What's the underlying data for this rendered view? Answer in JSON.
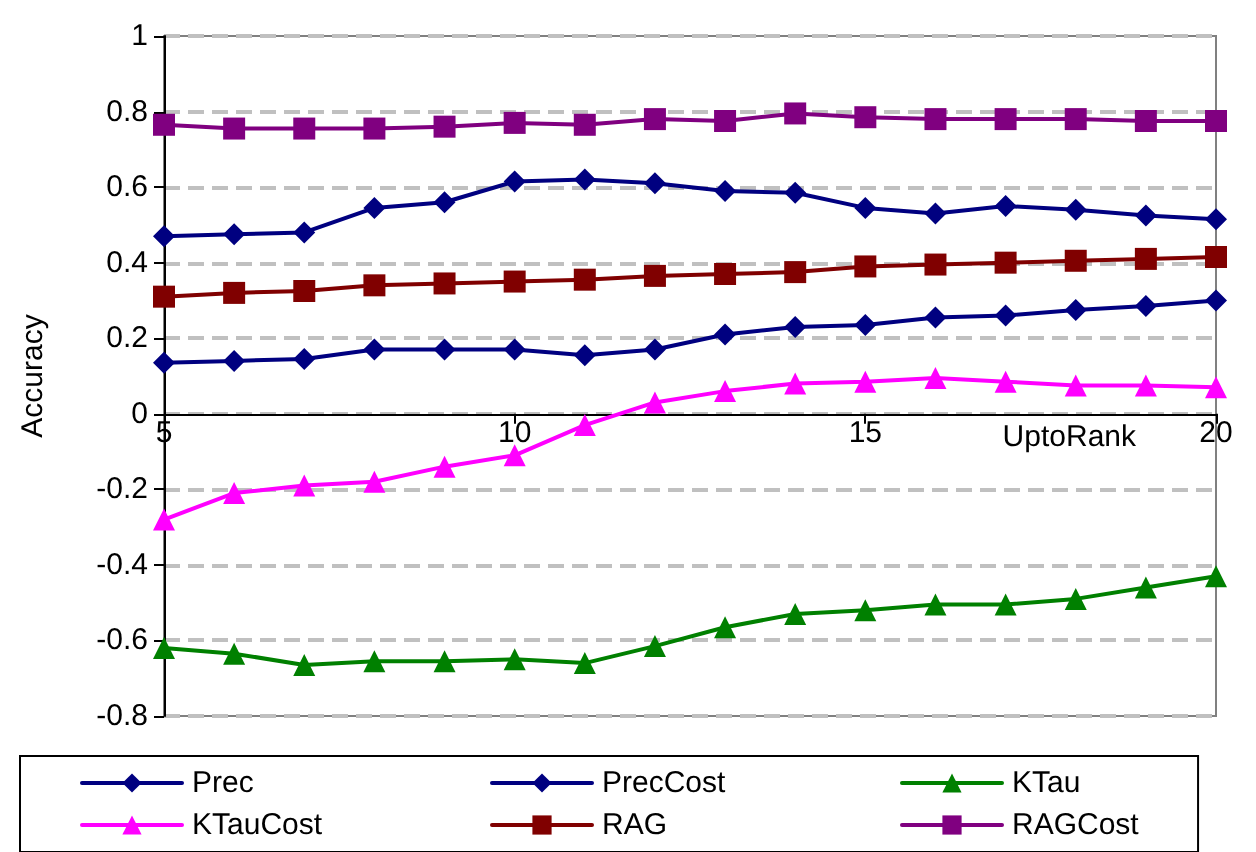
{
  "chart_data": {
    "type": "line",
    "xlabel": "UptoRank",
    "ylabel": "Accuracy",
    "x": [
      5,
      6,
      7,
      8,
      9,
      10,
      11,
      12,
      13,
      14,
      15,
      16,
      17,
      18,
      19,
      20
    ],
    "xlim": [
      5,
      20
    ],
    "xticks": [
      5,
      10,
      15,
      20
    ],
    "ylim": [
      -0.8,
      1
    ],
    "yticks": [
      -0.8,
      -0.6,
      -0.4,
      -0.2,
      0,
      0.2,
      0.4,
      0.6,
      0.8,
      1
    ],
    "grid": "y",
    "legend": "bottom",
    "series": [
      {
        "name": "Prec",
        "color": "#000080",
        "marker": "diamond",
        "values": [
          0.135,
          0.14,
          0.145,
          0.17,
          0.17,
          0.17,
          0.155,
          0.17,
          0.21,
          0.23,
          0.235,
          0.255,
          0.26,
          0.275,
          0.285,
          0.3
        ]
      },
      {
        "name": "PrecCost",
        "color": "#000080",
        "marker": "diamond",
        "values": [
          0.47,
          0.475,
          0.48,
          0.545,
          0.56,
          0.615,
          0.62,
          0.61,
          0.59,
          0.585,
          0.545,
          0.53,
          0.55,
          0.54,
          0.525,
          0.515
        ]
      },
      {
        "name": "KTau",
        "color": "#008000",
        "marker": "triangle",
        "values": [
          -0.62,
          -0.635,
          -0.665,
          -0.655,
          -0.655,
          -0.65,
          -0.66,
          -0.615,
          -0.565,
          -0.53,
          -0.52,
          -0.505,
          -0.505,
          -0.49,
          -0.46,
          -0.43
        ]
      },
      {
        "name": "KTauCost",
        "color": "#ff00ff",
        "marker": "triangle",
        "values": [
          -0.28,
          -0.21,
          -0.19,
          -0.18,
          -0.14,
          -0.11,
          -0.03,
          0.03,
          0.06,
          0.08,
          0.085,
          0.095,
          0.085,
          0.075,
          0.075,
          0.07
        ]
      },
      {
        "name": "RAG",
        "color": "#800000",
        "marker": "square",
        "values": [
          0.31,
          0.32,
          0.325,
          0.34,
          0.345,
          0.35,
          0.355,
          0.365,
          0.37,
          0.375,
          0.39,
          0.395,
          0.4,
          0.405,
          0.41,
          0.415
        ]
      },
      {
        "name": "RAGCost",
        "color": "#800080",
        "marker": "square",
        "values": [
          0.765,
          0.755,
          0.755,
          0.755,
          0.76,
          0.77,
          0.765,
          0.78,
          0.775,
          0.795,
          0.785,
          0.78,
          0.78,
          0.78,
          0.775,
          0.775
        ]
      }
    ]
  }
}
